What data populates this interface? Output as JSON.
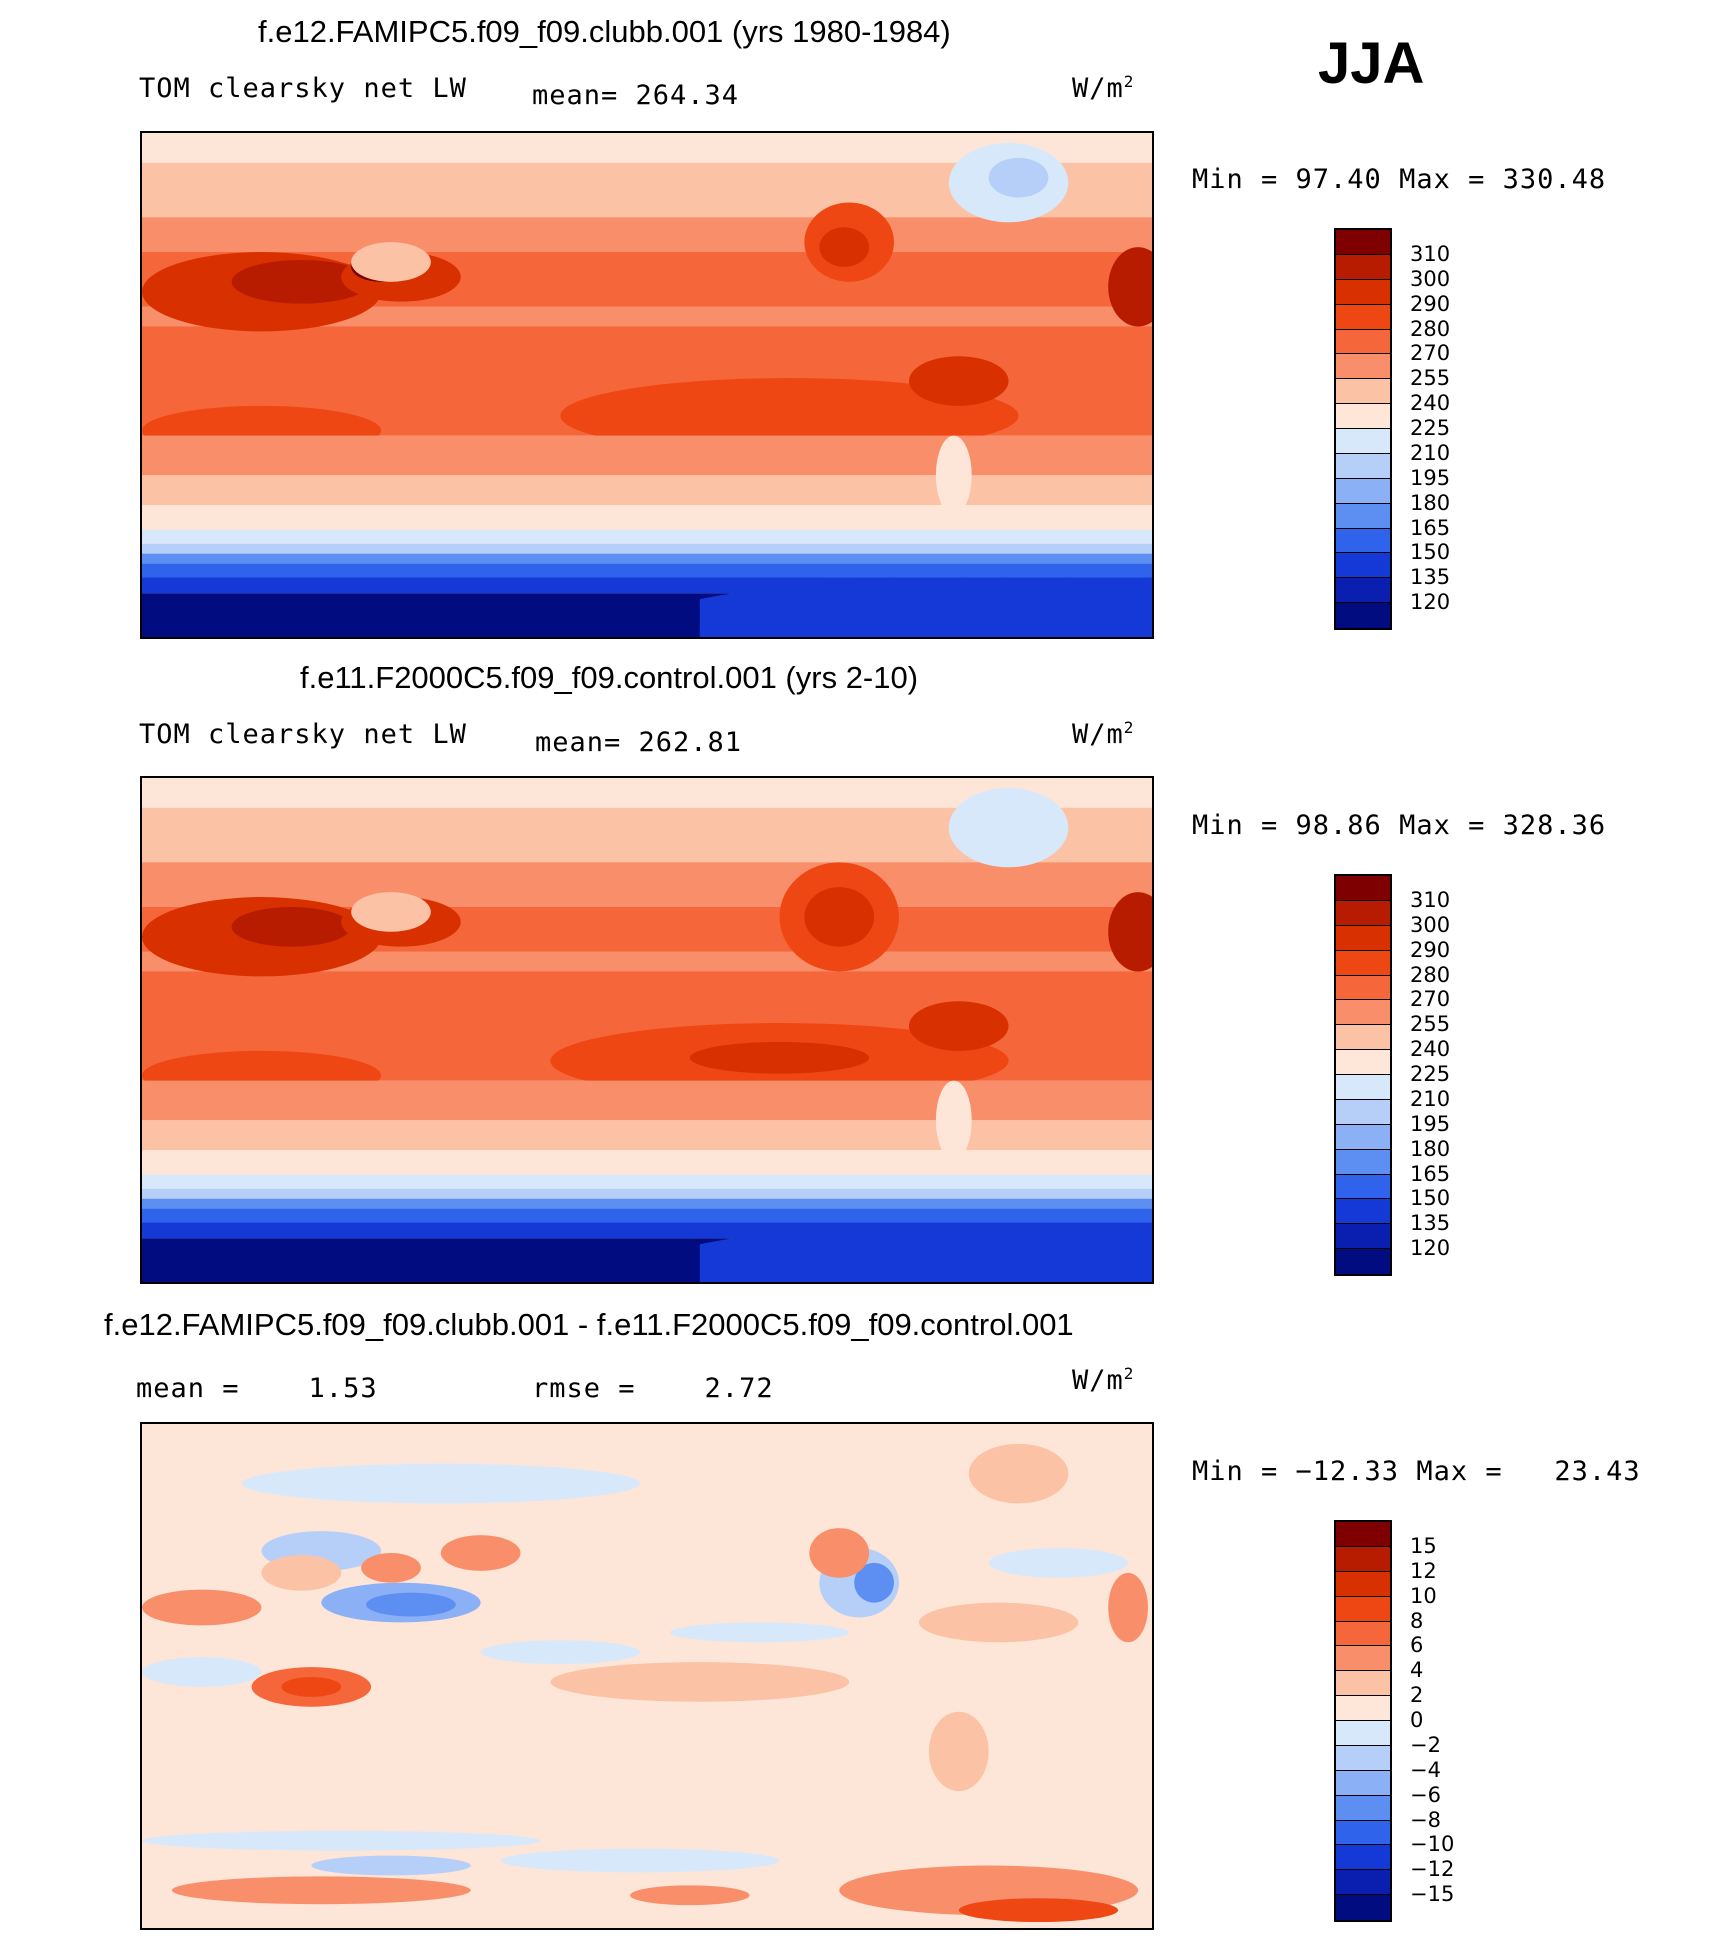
{
  "season": "JJA",
  "panels": [
    {
      "title": "f.e12.FAMIPC5.f09_f09.clubb.001 (yrs 1980-1984)",
      "variable": "TOM clearsky net LW",
      "mean_label": "mean= 264.34",
      "units": "W/m",
      "units_exp": "2",
      "minmax": "Min =   97.40 Max = 330.48",
      "colorbar": {
        "labels": [
          "310",
          "300",
          "290",
          "280",
          "270",
          "255",
          "240",
          "225",
          "210",
          "195",
          "180",
          "165",
          "150",
          "135",
          "120"
        ],
        "colors": [
          "#7f0000",
          "#b81c00",
          "#d93000",
          "#ef4713",
          "#f5663a",
          "#f98f6a",
          "#fcc2a5",
          "#fee6d8",
          "#d8e8fb",
          "#b6cff8",
          "#8bb0f5",
          "#5d8ff2",
          "#2f63ec",
          "#1439d6",
          "#0a1fb0",
          "#000c80"
        ]
      }
    },
    {
      "title": "f.e11.F2000C5.f09_f09.control.001 (yrs 2-10)",
      "variable": "TOM clearsky net LW",
      "mean_label": "mean= 262.81",
      "units": "W/m",
      "units_exp": "2",
      "minmax": "Min =   98.86 Max = 328.36",
      "colorbar": {
        "labels": [
          "310",
          "300",
          "290",
          "280",
          "270",
          "255",
          "240",
          "225",
          "210",
          "195",
          "180",
          "165",
          "150",
          "135",
          "120"
        ],
        "colors": [
          "#7f0000",
          "#b81c00",
          "#d93000",
          "#ef4713",
          "#f5663a",
          "#f98f6a",
          "#fcc2a5",
          "#fee6d8",
          "#d8e8fb",
          "#b6cff8",
          "#8bb0f5",
          "#5d8ff2",
          "#2f63ec",
          "#1439d6",
          "#0a1fb0",
          "#000c80"
        ]
      }
    },
    {
      "title": "f.e12.FAMIPC5.f09_f09.clubb.001 - f.e11.F2000C5.f09_f09.control.001",
      "mean_label": "mean =    1.53",
      "rmse_label": "rmse =    2.72",
      "units": "W/m",
      "units_exp": "2",
      "minmax": "Min = −12.33 Max =   23.43",
      "colorbar": {
        "labels": [
          "15",
          "12",
          "10",
          "8",
          "6",
          "4",
          "2",
          "0",
          "−2",
          "−4",
          "−6",
          "−8",
          "−10",
          "−12",
          "−15"
        ],
        "colors": [
          "#7f0000",
          "#b81c00",
          "#d93000",
          "#ef4713",
          "#f5663a",
          "#f98f6a",
          "#fcc2a5",
          "#fee6d8",
          "#d8e8fb",
          "#b6cff8",
          "#8bb0f5",
          "#5d8ff2",
          "#2f63ec",
          "#1439d6",
          "#0a1fb0",
          "#000c80"
        ]
      }
    }
  ]
}
